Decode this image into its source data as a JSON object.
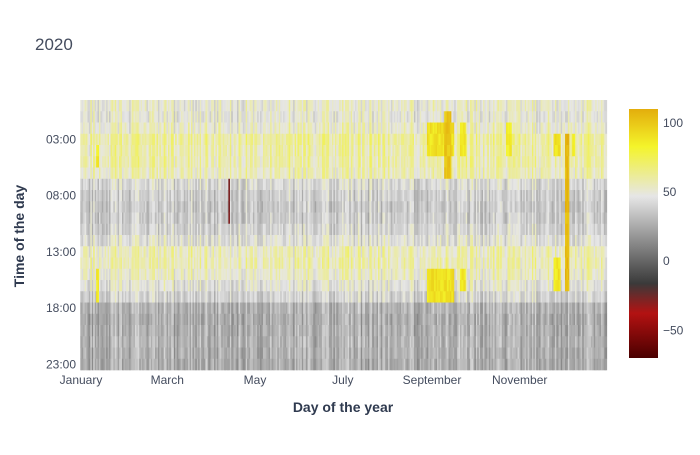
{
  "chart_data": {
    "type": "heatmap",
    "title": "2020",
    "xlabel": "Day of the year",
    "ylabel": "Time of the day",
    "x_tick_labels": [
      "January",
      "March",
      "May",
      "July",
      "September",
      "November"
    ],
    "x_tick_days": [
      1,
      61,
      122,
      183,
      245,
      306
    ],
    "x_range_days": [
      1,
      366
    ],
    "y_tick_labels": [
      "03:00",
      "08:00",
      "13:00",
      "18:00",
      "23:00"
    ],
    "y_tick_hours": [
      3,
      8,
      13,
      18,
      23
    ],
    "y_range_hours": [
      -0.5,
      23.5
    ],
    "colorbar": {
      "min": -70,
      "max": 110,
      "ticks": [
        -50,
        0,
        50,
        100
      ],
      "colorscale": [
        [
          0.0,
          "#4a0000"
        ],
        [
          0.18,
          "#b31212"
        ],
        [
          0.3,
          "#3a3a3a"
        ],
        [
          0.65,
          "#e6e6e6"
        ],
        [
          0.85,
          "#f4f42a"
        ],
        [
          1.0,
          "#e3ad0c"
        ]
      ]
    },
    "hour_profile": [
      50,
      48,
      52,
      60,
      58,
      58,
      55,
      42,
      38,
      36,
      37,
      40,
      45,
      55,
      56,
      52,
      46,
      40,
      28,
      26,
      27,
      28,
      27,
      26
    ],
    "highlights": [
      {
        "day_start": 12,
        "day_end": 13,
        "hours": [
          4,
          5,
          15,
          16,
          17
        ],
        "value": 85
      },
      {
        "day_start": 242,
        "day_end": 260,
        "hours": [
          2,
          3,
          4,
          15,
          16,
          17
        ],
        "value": 90
      },
      {
        "day_start": 254,
        "day_end": 258,
        "hours": [
          1,
          2,
          3,
          4,
          5,
          6
        ],
        "value": 100
      },
      {
        "day_start": 265,
        "day_end": 268,
        "hours": [
          2,
          3,
          4,
          15,
          16
        ],
        "value": 88
      },
      {
        "day_start": 297,
        "day_end": 300,
        "hours": [
          2,
          3,
          4
        ],
        "value": 85
      },
      {
        "day_start": 330,
        "day_end": 334,
        "hours": [
          3,
          4,
          14,
          15,
          16
        ],
        "value": 88
      },
      {
        "day_start": 338,
        "day_end": 340,
        "hours": [
          3,
          4,
          5,
          6,
          7,
          8,
          9,
          10,
          11,
          12,
          13,
          14,
          15,
          16
        ],
        "value": 105
      },
      {
        "day_start": 343,
        "day_end": 344,
        "hours": [
          3,
          4
        ],
        "value": 85
      },
      {
        "day_start": 104,
        "day_end": 104,
        "hours": [
          7,
          8,
          9,
          10
        ],
        "value": -60
      }
    ]
  }
}
